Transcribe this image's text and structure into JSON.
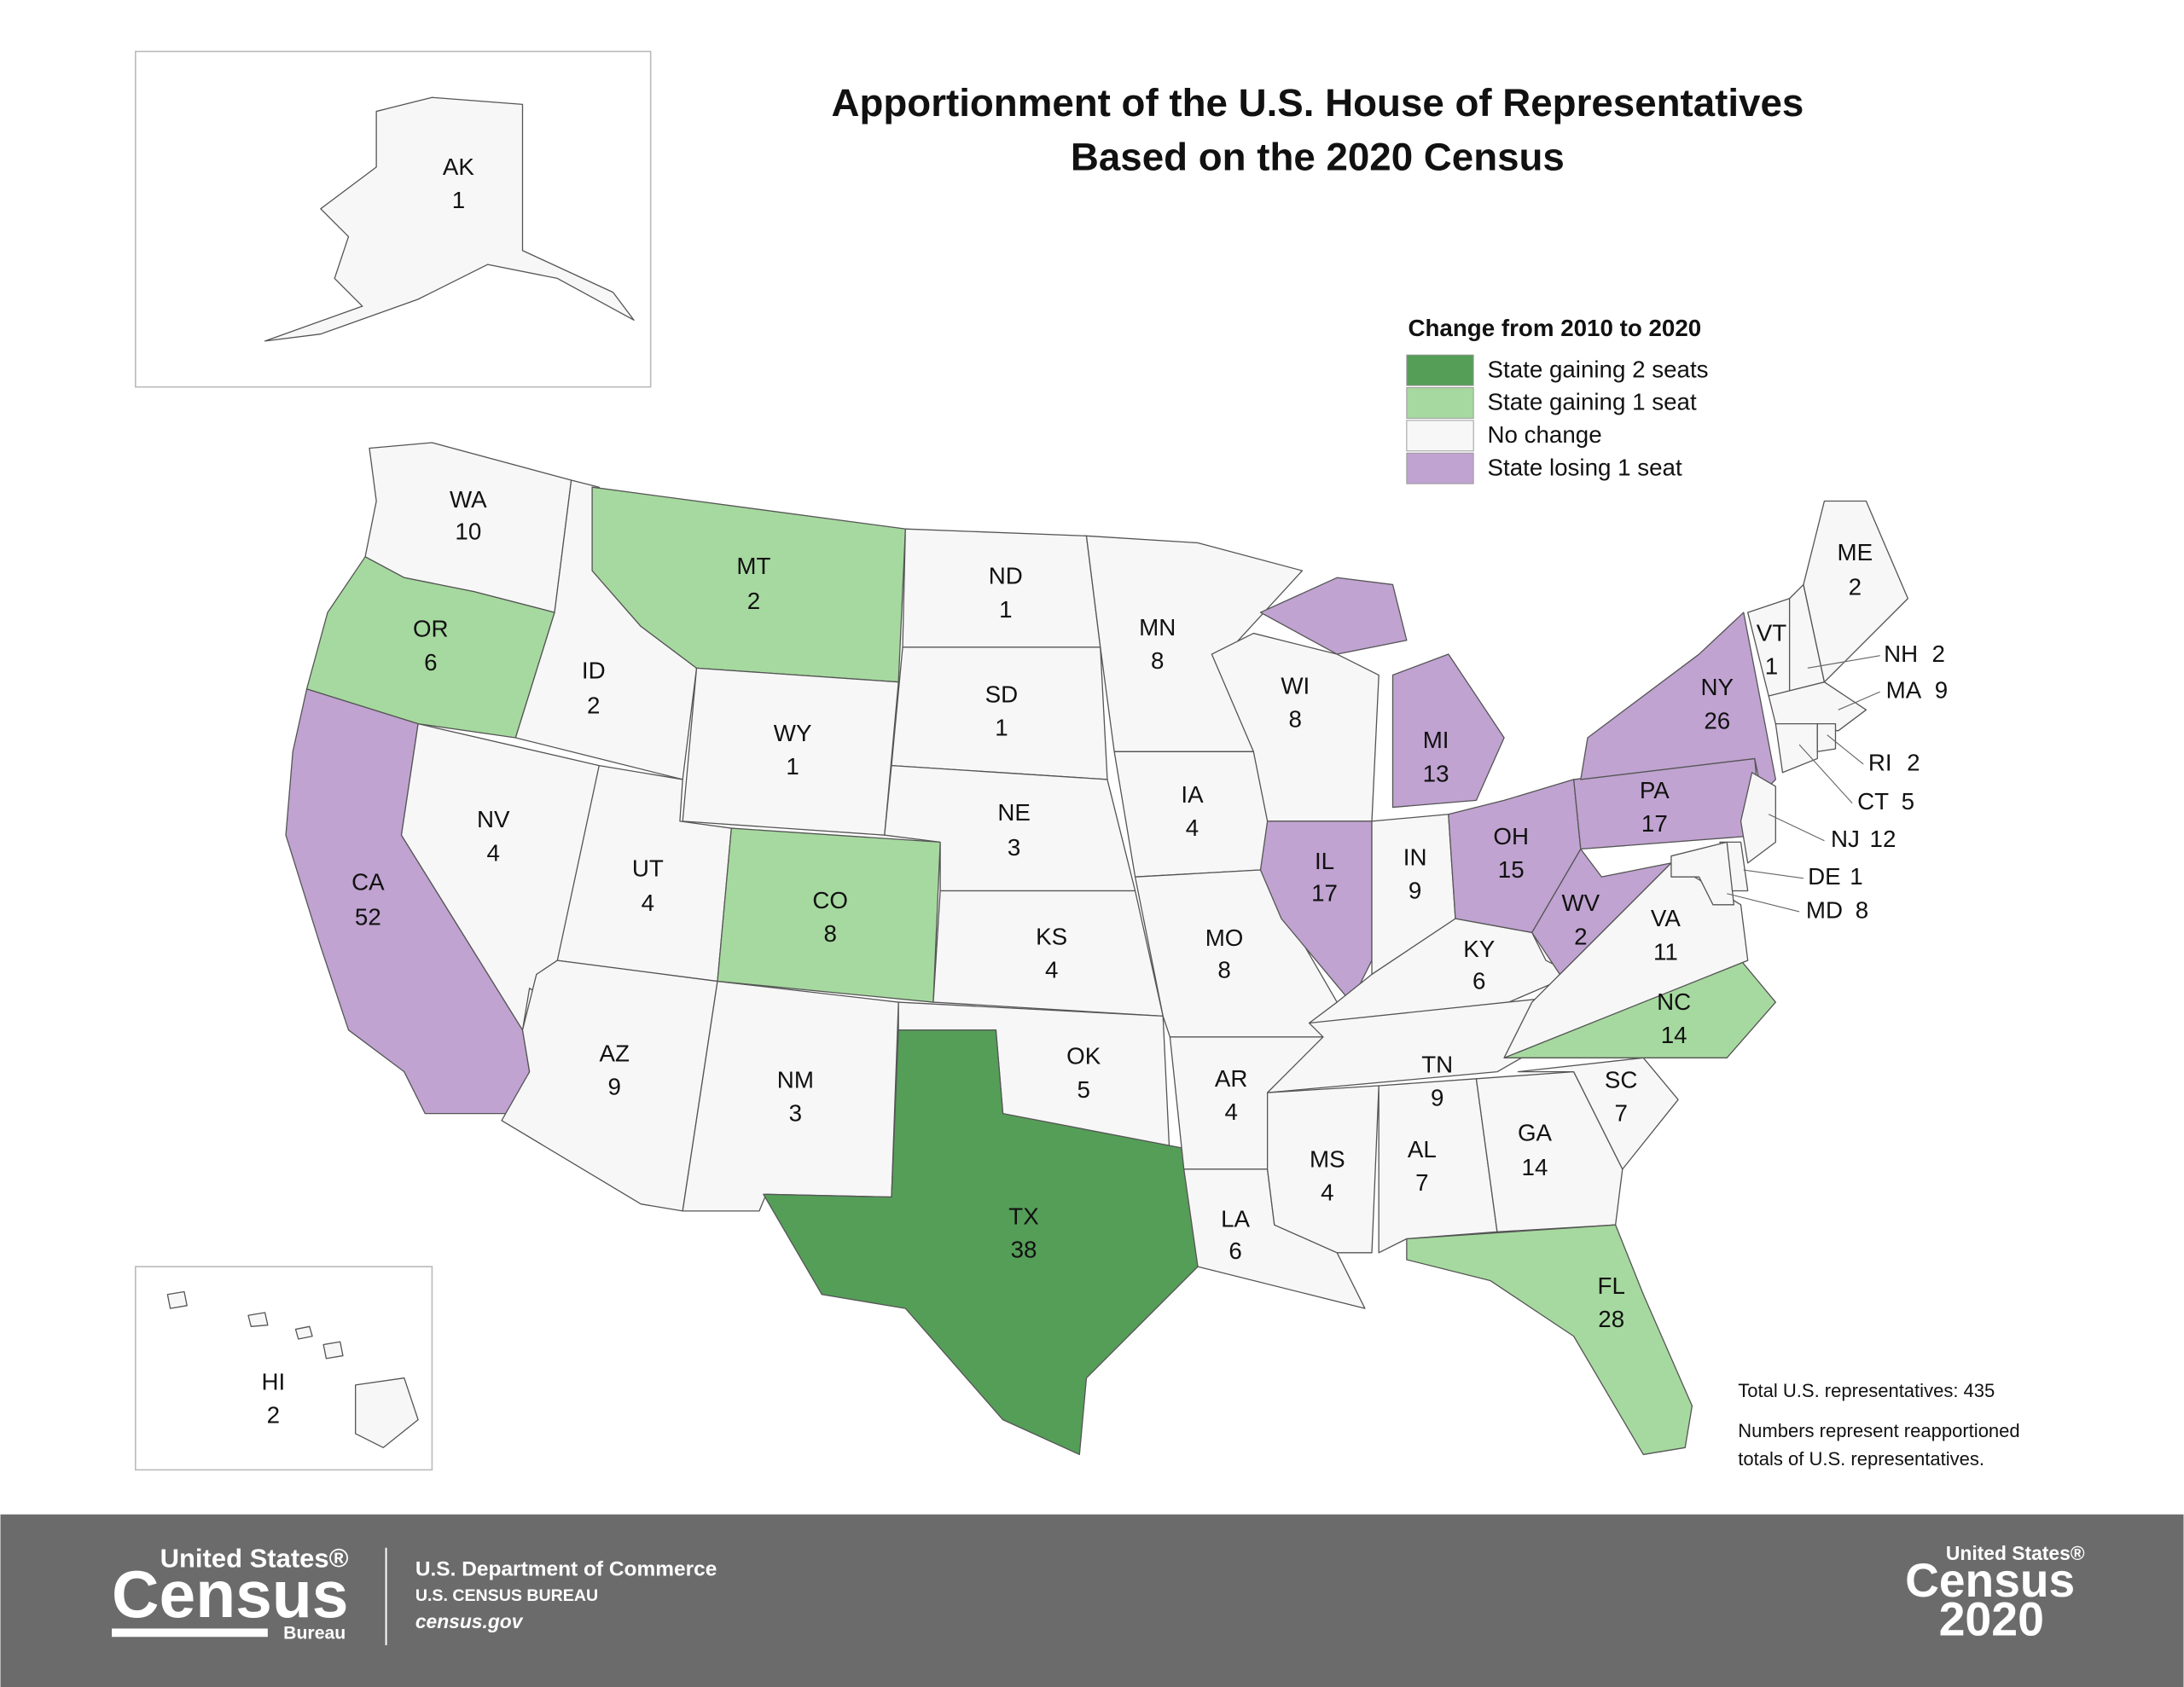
{
  "header": {
    "title": [
      "Apportionment of the U.S. House of Representatives",
      "Based on the 2020 Census"
    ]
  },
  "legend": {
    "title": "Change from 2010 to 2020",
    "items": [
      {
        "label": "State gaining 2 seats",
        "color": "#559e58"
      },
      {
        "label": "State gaining 1 seat",
        "color": "#a6d99f"
      },
      {
        "label": "No change",
        "color": "#f7f7f7"
      },
      {
        "label": "State losing 1 seat",
        "color": "#c0a3d1"
      }
    ]
  },
  "states": [
    {
      "abbr": "WA",
      "seats": "10",
      "color": "#f7f7f7"
    },
    {
      "abbr": "OR",
      "seats": "6",
      "color": "#a6d99f"
    },
    {
      "abbr": "CA",
      "seats": "52",
      "color": "#c0a3d1"
    },
    {
      "abbr": "NV",
      "seats": "4",
      "color": "#f7f7f7"
    },
    {
      "abbr": "ID",
      "seats": "2",
      "color": "#f7f7f7"
    },
    {
      "abbr": "MT",
      "seats": "2",
      "color": "#a6d99f"
    },
    {
      "abbr": "WY",
      "seats": "1",
      "color": "#f7f7f7"
    },
    {
      "abbr": "UT",
      "seats": "4",
      "color": "#f7f7f7"
    },
    {
      "abbr": "CO",
      "seats": "8",
      "color": "#a6d99f"
    },
    {
      "abbr": "AZ",
      "seats": "9",
      "color": "#f7f7f7"
    },
    {
      "abbr": "NM",
      "seats": "3",
      "color": "#f7f7f7"
    },
    {
      "abbr": "ND",
      "seats": "1",
      "color": "#f7f7f7"
    },
    {
      "abbr": "SD",
      "seats": "1",
      "color": "#f7f7f7"
    },
    {
      "abbr": "NE",
      "seats": "3",
      "color": "#f7f7f7"
    },
    {
      "abbr": "KS",
      "seats": "4",
      "color": "#f7f7f7"
    },
    {
      "abbr": "OK",
      "seats": "5",
      "color": "#f7f7f7"
    },
    {
      "abbr": "TX",
      "seats": "38",
      "color": "#559e58"
    },
    {
      "abbr": "MN",
      "seats": "8",
      "color": "#f7f7f7"
    },
    {
      "abbr": "IA",
      "seats": "4",
      "color": "#f7f7f7"
    },
    {
      "abbr": "MO",
      "seats": "8",
      "color": "#f7f7f7"
    },
    {
      "abbr": "AR",
      "seats": "4",
      "color": "#f7f7f7"
    },
    {
      "abbr": "LA",
      "seats": "6",
      "color": "#f7f7f7"
    },
    {
      "abbr": "WI",
      "seats": "8",
      "color": "#f7f7f7"
    },
    {
      "abbr": "MI",
      "seats": "13",
      "color": "#c0a3d1"
    },
    {
      "abbr": "IL",
      "seats": "17",
      "color": "#c0a3d1"
    },
    {
      "abbr": "IN",
      "seats": "9",
      "color": "#f7f7f7"
    },
    {
      "abbr": "OH",
      "seats": "15",
      "color": "#c0a3d1"
    },
    {
      "abbr": "KY",
      "seats": "6",
      "color": "#f7f7f7"
    },
    {
      "abbr": "TN",
      "seats": "9",
      "color": "#f7f7f7"
    },
    {
      "abbr": "MS",
      "seats": "4",
      "color": "#f7f7f7"
    },
    {
      "abbr": "AL",
      "seats": "7",
      "color": "#f7f7f7"
    },
    {
      "abbr": "GA",
      "seats": "14",
      "color": "#f7f7f7"
    },
    {
      "abbr": "FL",
      "seats": "28",
      "color": "#a6d99f"
    },
    {
      "abbr": "SC",
      "seats": "7",
      "color": "#f7f7f7"
    },
    {
      "abbr": "NC",
      "seats": "14",
      "color": "#a6d99f"
    },
    {
      "abbr": "VA",
      "seats": "11",
      "color": "#f7f7f7"
    },
    {
      "abbr": "WV",
      "seats": "2",
      "color": "#c0a3d1"
    },
    {
      "abbr": "PA",
      "seats": "17",
      "color": "#c0a3d1"
    },
    {
      "abbr": "NY",
      "seats": "26",
      "color": "#c0a3d1"
    },
    {
      "abbr": "VT",
      "seats": "1",
      "color": "#f7f7f7"
    },
    {
      "abbr": "NH",
      "seats": "2",
      "color": "#f7f7f7"
    },
    {
      "abbr": "ME",
      "seats": "2",
      "color": "#f7f7f7"
    },
    {
      "abbr": "MA",
      "seats": "9",
      "color": "#f7f7f7"
    },
    {
      "abbr": "CT",
      "seats": "5",
      "color": "#f7f7f7"
    },
    {
      "abbr": "RI",
      "seats": "2",
      "color": "#f7f7f7"
    },
    {
      "abbr": "NJ",
      "seats": "12",
      "color": "#f7f7f7"
    },
    {
      "abbr": "DE",
      "seats": "1",
      "color": "#f7f7f7"
    },
    {
      "abbr": "MD",
      "seats": "8",
      "color": "#f7f7f7"
    },
    {
      "abbr": "AK",
      "seats": "1",
      "color": "#f7f7f7"
    },
    {
      "abbr": "HI",
      "seats": "2",
      "color": "#f7f7f7"
    }
  ],
  "notes": {
    "total": "Total U.S. representatives: 435",
    "explanation": [
      "Numbers represent reapportioned",
      "totals of U.S. representatives."
    ]
  },
  "footer": {
    "logo": {
      "top": "United States®",
      "main": "Census",
      "sub": "Bureau"
    },
    "department": "U.S. Department of Commerce",
    "bureau": "U.S. CENSUS BUREAU",
    "site": "census.gov",
    "census2020": {
      "top": "United States®",
      "main": "Census",
      "year": "2020"
    }
  }
}
